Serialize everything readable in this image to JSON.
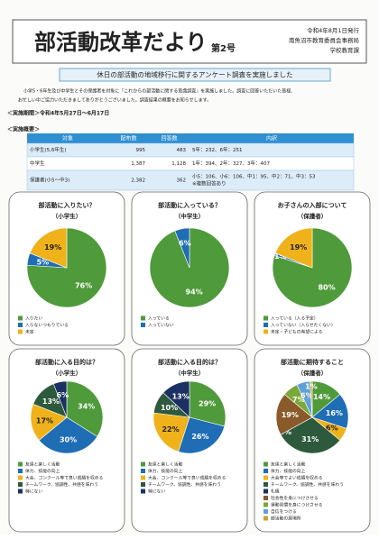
{
  "header": {
    "title": "部活動改革だより",
    "issue": "第2号",
    "date": "令和4年8月1日発行",
    "office": "南魚沼市教育委員会事務局",
    "section": "学校教育課"
  },
  "banner": "休日の部活動の地域移行に関するアンケート調査を実施しました",
  "intro": [
    "小学5・6年生及び中学生とその保護者を対象に『これからの部活動に関する意識調査』を実施しました。調査に回答いただいた皆様、",
    "お忙しい中ご協力いただきましてありがとうございました。調査結果の概要をお知らせします。"
  ],
  "period": "＜実施期間＞令和4年5月27日～6月17日",
  "overview": "＜実施概要＞",
  "table": {
    "header": [
      "対象",
      "配布数",
      "回答数",
      "内訳"
    ],
    "rows": [
      [
        "小学生(5,6年生)",
        "995",
        "483",
        [
          "5年：232、6年：251"
        ]
      ],
      [
        "中学生",
        "1,387",
        "1,128",
        [
          "1年：394、2年：327、3年：407"
        ]
      ],
      [
        "保護者(小5～中3)",
        "2,382",
        "362",
        [
          "小5：106、小6：106、中1：95、中2：71、中3：53",
          "※複数回答あり"
        ]
      ]
    ]
  },
  "charts": [
    {
      "title": "部活動に入りたい？",
      "subtitle": "（小学生）",
      "categories": [
        "入りたい",
        "入らないつもりでいる",
        "未定"
      ],
      "values": [
        76,
        5,
        19
      ],
      "value_labels": [
        "76%",
        "5%",
        "19%"
      ],
      "colors": [
        "#4f9a3b",
        "#1f6db5",
        "#efb21a"
      ]
    },
    {
      "title": "部活動に入っている？",
      "subtitle": "（中学生）",
      "categories": [
        "入っている",
        "入っていない"
      ],
      "values": [
        94,
        6
      ],
      "value_labels": [
        "94%",
        "6%"
      ],
      "colors": [
        "#4f9a3b",
        "#1f6db5"
      ]
    },
    {
      "title": "お子さんの入部について",
      "subtitle": "（保護者）",
      "categories": [
        "入っている（入る予定）",
        "入っていない（入らせたくない）",
        "未定・子どもの希望による"
      ],
      "values": [
        80,
        1,
        19
      ],
      "value_labels": [
        "80%",
        "1%",
        "19%"
      ],
      "colors": [
        "#4f9a3b",
        "#1f6db5",
        "#efb21a"
      ]
    },
    {
      "title": "部活動に入る目的は？",
      "subtitle": "（小学生）",
      "categories": [
        "友達と楽しく活動",
        "体力、技能の向上",
        "大会、コンクール等で良い成績を収める",
        "チームワーク、協調性、共感を味わう",
        "特にない"
      ],
      "values": [
        34,
        30,
        17,
        13,
        6
      ],
      "value_labels": [
        "34%",
        "30%",
        "17%",
        "13%",
        "6%"
      ],
      "colors": [
        "#4f9a3b",
        "#1f6db5",
        "#efb21a",
        "#2d5a3c",
        "#1c3163"
      ]
    },
    {
      "title": "部活動に入る目的は？",
      "subtitle": "（中学生）",
      "categories": [
        "友達と楽しく活動",
        "体力、技能の向上",
        "大会、コンクール等で良い成績を収める",
        "チームワーク、協調性、共感を味わう",
        "特にない"
      ],
      "values": [
        29,
        26,
        22,
        10,
        13
      ],
      "value_labels": [
        "29%",
        "26%",
        "22%",
        "10%",
        "13%"
      ],
      "colors": [
        "#4f9a3b",
        "#1f6db5",
        "#efb21a",
        "#2d5a3c",
        "#1c3163"
      ]
    },
    {
      "title": "部活動に期待すること",
      "subtitle": "（保護者）",
      "categories": [
        "友達と楽しく活動",
        "体力、技能の向上",
        "大会等でよい成績を収める",
        "チームワーク、協調性、共感を味わう",
        "礼儀",
        "社会性を身につけさせる",
        "運動習慣を身につけさせる",
        "自信をつける",
        "部活動の居場所"
      ],
      "values": [
        14,
        16,
        6,
        31,
        0,
        19,
        7,
        6,
        1
      ],
      "value_labels": [
        "14%",
        "16%",
        "6%",
        "31%",
        "0%",
        "19%",
        "7%",
        "6%",
        "1%"
      ],
      "colors": [
        "#4f9a3b",
        "#1f6db5",
        "#efb21a",
        "#2d5a3c",
        "#1c3163",
        "#8b5a2b",
        "#7aa83a",
        "#5fa0d8",
        "#c9a227"
      ]
    }
  ]
}
